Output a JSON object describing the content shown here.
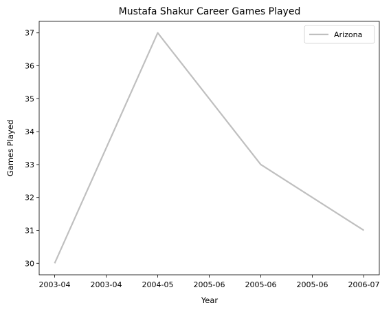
{
  "chart_data": {
    "type": "line",
    "title": "Mustafa Shakur Career Games Played",
    "xlabel": "Year",
    "ylabel": "Games Played",
    "x": [
      "2003-04",
      "2004-05",
      "2005-06",
      "2006-07"
    ],
    "x_tick_labels": [
      "2003-04",
      "2003-04",
      "2004-05",
      "2005-06",
      "2005-06",
      "2005-06",
      "2006-07"
    ],
    "ylim": [
      29.65,
      37.35
    ],
    "y_ticks": [
      30,
      31,
      32,
      33,
      34,
      35,
      36,
      37
    ],
    "series": [
      {
        "name": "Arizona",
        "values": [
          30,
          37,
          33,
          31
        ],
        "color": "#bfbfbf"
      }
    ],
    "legend": "top-right",
    "grid": false
  }
}
